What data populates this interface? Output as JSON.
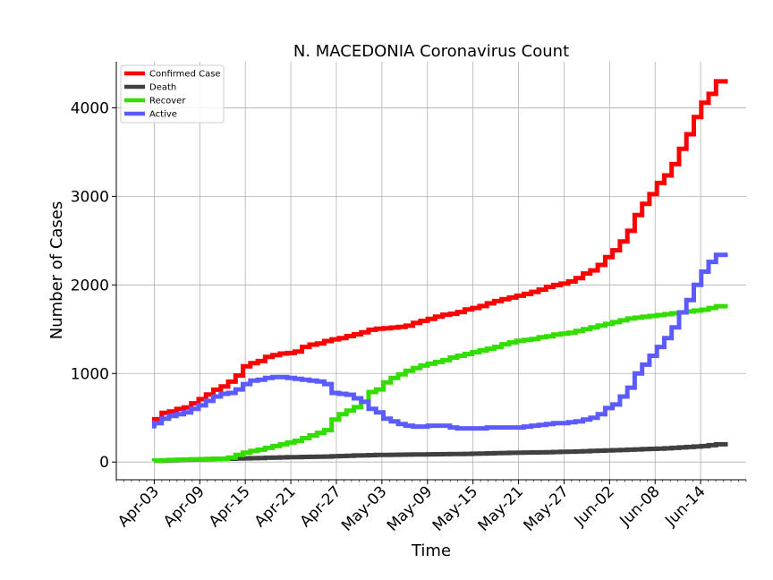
{
  "chart_data": {
    "type": "line",
    "title": "N. MACEDONIA Coronavirus Count",
    "xlabel": "Time",
    "ylabel": "Number of Cases",
    "x_start": "2020-04-03",
    "x_end": "2020-06-17",
    "xlim": [
      "2020-03-29",
      "2020-06-20"
    ],
    "ylim": [
      -200,
      4520
    ],
    "grid": true,
    "legend_position": "top-left",
    "x_tick_labels": [
      "Apr-03",
      "Apr-09",
      "Apr-15",
      "Apr-21",
      "Apr-27",
      "May-03",
      "May-09",
      "May-15",
      "May-21",
      "May-27",
      "Jun-02",
      "Jun-08",
      "Jun-14"
    ],
    "x_tick_dates": [
      "2020-04-03",
      "2020-04-09",
      "2020-04-15",
      "2020-04-21",
      "2020-04-27",
      "2020-05-03",
      "2020-05-09",
      "2020-05-15",
      "2020-05-21",
      "2020-05-27",
      "2020-06-02",
      "2020-06-08",
      "2020-06-14"
    ],
    "y_ticks": [
      0,
      1000,
      2000,
      3000,
      4000
    ],
    "y_tick_labels": [
      "0",
      "1000",
      "2000",
      "3000",
      "4000"
    ],
    "series": [
      {
        "name": "Confirmed Case",
        "color": "#ff0000",
        "values": [
          430,
          483,
          555,
          570,
          599,
          617,
          663,
          711,
          762,
          817,
          854,
          908,
          977,
          1081,
          1117,
          1140,
          1188,
          1207,
          1225,
          1231,
          1247,
          1300,
          1326,
          1339,
          1367,
          1386,
          1399,
          1422,
          1442,
          1465,
          1494,
          1506,
          1511,
          1518,
          1526,
          1539,
          1572,
          1594,
          1617,
          1642,
          1664,
          1674,
          1694,
          1722,
          1740,
          1762,
          1792,
          1817,
          1839,
          1858,
          1878,
          1898,
          1921,
          1947,
          1978,
          1999,
          2014,
          2039,
          2077,
          2129,
          2164,
          2226,
          2315,
          2391,
          2492,
          2611,
          2790,
          2915,
          3025,
          3152,
          3236,
          3364,
          3538,
          3701,
          3895,
          4057,
          4157,
          4299
        ]
      },
      {
        "name": "Death",
        "color": "#404040",
        "values": [
          11,
          14,
          17,
          20,
          23,
          26,
          28,
          30,
          32,
          34,
          36,
          38,
          40,
          42,
          44,
          46,
          49,
          51,
          53,
          55,
          56,
          58,
          59,
          60,
          62,
          65,
          68,
          71,
          74,
          76,
          78,
          80,
          81,
          82,
          83,
          84,
          85,
          86,
          87,
          88,
          89,
          90,
          91,
          92,
          94,
          96,
          98,
          100,
          102,
          104,
          106,
          107,
          108,
          109,
          111,
          113,
          115,
          117,
          119,
          122,
          125,
          128,
          131,
          134,
          137,
          140,
          143,
          146,
          149,
          152,
          155,
          160,
          165,
          170,
          175,
          180,
          190,
          200
        ]
      },
      {
        "name": "Recover",
        "color": "#33dd00",
        "values": [
          14,
          17,
          20,
          23,
          26,
          28,
          30,
          32,
          34,
          36,
          38,
          50,
          80,
          105,
          125,
          140,
          160,
          180,
          200,
          220,
          240,
          270,
          300,
          330,
          360,
          480,
          540,
          580,
          620,
          680,
          790,
          820,
          900,
          950,
          990,
          1030,
          1060,
          1090,
          1110,
          1130,
          1150,
          1180,
          1200,
          1220,
          1240,
          1260,
          1280,
          1300,
          1330,
          1350,
          1370,
          1380,
          1390,
          1410,
          1420,
          1440,
          1450,
          1460,
          1480,
          1500,
          1520,
          1540,
          1560,
          1580,
          1600,
          1620,
          1630,
          1640,
          1650,
          1660,
          1670,
          1680,
          1690,
          1700,
          1710,
          1720,
          1740,
          1760
        ]
      },
      {
        "name": "Active",
        "color": "#5b5bff",
        "values": [
          380,
          440,
          490,
          520,
          540,
          560,
          600,
          640,
          690,
          740,
          770,
          780,
          820,
          880,
          920,
          930,
          950,
          960,
          960,
          950,
          940,
          930,
          920,
          910,
          880,
          780,
          770,
          760,
          720,
          680,
          600,
          560,
          490,
          460,
          430,
          410,
          400,
          400,
          410,
          410,
          410,
          390,
          380,
          380,
          380,
          380,
          390,
          390,
          390,
          390,
          390,
          400,
          410,
          420,
          430,
          440,
          440,
          450,
          460,
          480,
          500,
          540,
          610,
          650,
          740,
          840,
          1000,
          1100,
          1200,
          1300,
          1400,
          1520,
          1690,
          1830,
          2000,
          2150,
          2260,
          2340
        ]
      }
    ]
  }
}
